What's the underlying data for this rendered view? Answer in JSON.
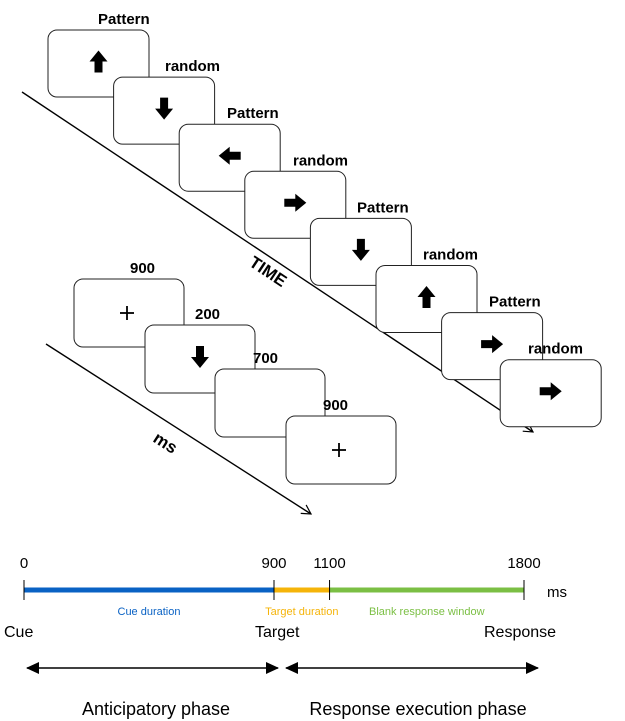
{
  "sequence": {
    "time_label": "TIME",
    "trials": [
      {
        "label": "Pattern",
        "arrow": "up"
      },
      {
        "label": "random",
        "arrow": "down"
      },
      {
        "label": "Pattern",
        "arrow": "left"
      },
      {
        "label": "random",
        "arrow": "right"
      },
      {
        "label": "Pattern",
        "arrow": "down"
      },
      {
        "label": "random",
        "arrow": "up"
      },
      {
        "label": "Pattern",
        "arrow": "right"
      },
      {
        "label": "random",
        "arrow": "right"
      }
    ]
  },
  "trial_timing": {
    "unit_label": "ms",
    "frames": [
      {
        "duration": "900",
        "content": "plus"
      },
      {
        "duration": "200",
        "content": "arrow-down"
      },
      {
        "duration": "700",
        "content": "blank"
      },
      {
        "duration": "900",
        "content": "plus"
      }
    ]
  },
  "timeline": {
    "ticks": [
      "0",
      "900",
      "1100",
      "1800"
    ],
    "unit": "ms",
    "segments": [
      {
        "label": "Cue duration",
        "color": "#0a62c4",
        "start": 0,
        "end": 900
      },
      {
        "label": "Target duration",
        "color": "#f5b40a",
        "start": 900,
        "end": 1100
      },
      {
        "label": "Blank response window",
        "color": "#7bbf44",
        "start": 1100,
        "end": 1800
      }
    ],
    "events": [
      "Cue",
      "Target",
      "Response"
    ],
    "phases": [
      "Anticipatory phase",
      "Response execution phase"
    ]
  }
}
